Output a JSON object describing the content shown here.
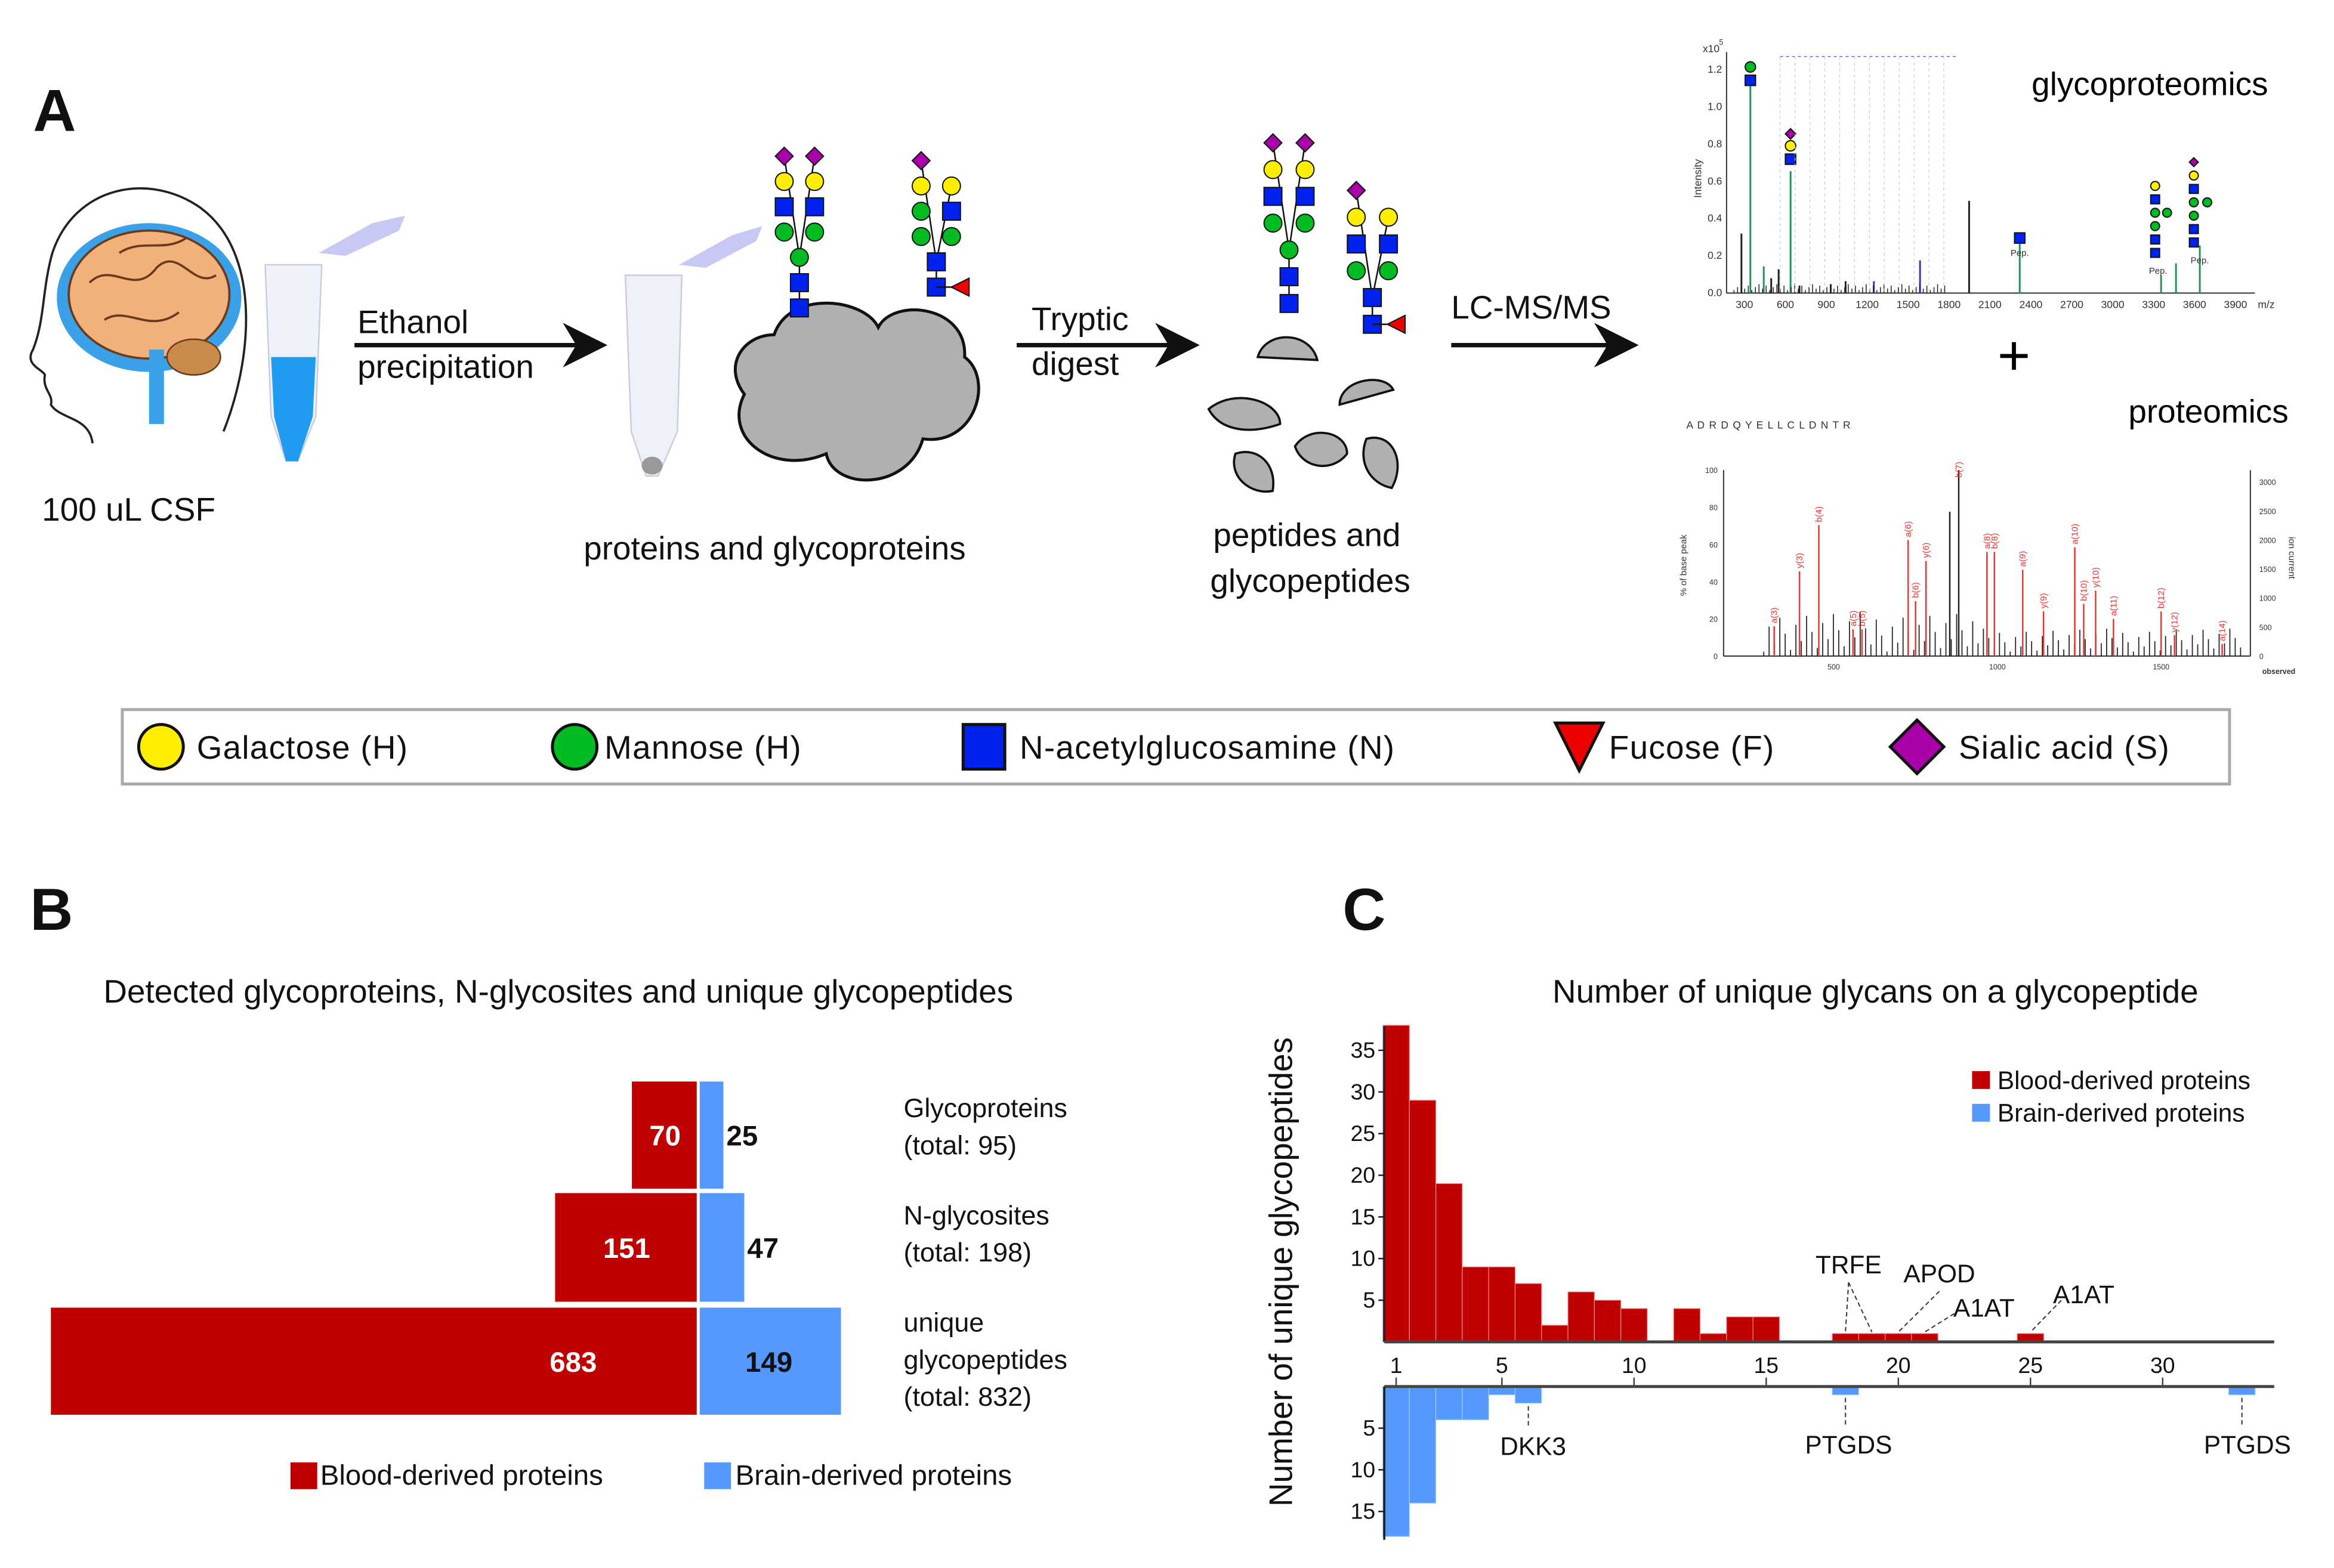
{
  "panel_a": {
    "letter": "A",
    "csf_label": "100 uL CSF",
    "step1": [
      "Ethanol",
      "precipitation"
    ],
    "proteins_label": "proteins and glycoproteins",
    "step2": [
      "Tryptic",
      "digest"
    ],
    "peptides_label": [
      "peptides and",
      "glycopeptides"
    ],
    "step3": "LC-MS/MS",
    "glyco_title": "glycoproteomics",
    "plus": "+",
    "prot_title": "proteomics",
    "glyco_spectrum": {
      "y_label": "Intensity",
      "y_exponent": "x10",
      "y_exp_power": "5",
      "y_ticks": [
        "0.0",
        "0.2",
        "0.4",
        "0.6",
        "0.8",
        "1.0",
        "1.2"
      ],
      "x_ticks": [
        "300",
        "600",
        "900",
        "1200",
        "1500",
        "1800",
        "2100",
        "2400",
        "2700",
        "3000",
        "3300",
        "3600",
        "3900"
      ],
      "x_label": "m/z",
      "pep_label": "Pep."
    },
    "prot_spectrum": {
      "sequence": "A D R D Q Y E L L C L D N T R",
      "y_label": "% of base peak",
      "y2_label": "ion current",
      "x_label": "observed",
      "y_ticks": [
        "0",
        "20",
        "40",
        "60",
        "80",
        "100"
      ],
      "y2_ticks": [
        "0",
        "500",
        "1000",
        "1500",
        "2000",
        "2500",
        "3000"
      ],
      "x_ticks": [
        "500",
        "1000",
        "1500"
      ],
      "peak_labels": [
        "a(3)",
        "y(3)",
        "b(4)",
        "a(5)",
        "b(5)",
        "a(6)",
        "b(6)",
        "y(6)",
        "b(7)",
        "a(8)",
        "b(8)",
        "a(9)",
        "y(9)",
        "a(10)",
        "b(10)",
        "y(10)",
        "a(11)",
        "b(12)",
        "y(12)",
        "a(14)"
      ]
    },
    "legend": [
      {
        "label": "Galactose (H)",
        "shape": "circle",
        "color": "#ffee00"
      },
      {
        "label": "Mannose (H)",
        "shape": "circle",
        "color": "#00bb22"
      },
      {
        "label": "N-acetylglucosamine (N)",
        "shape": "square",
        "color": "#0022ee"
      },
      {
        "label": "Fucose (F)",
        "shape": "triangle",
        "color": "#ee0000"
      },
      {
        "label": "Sialic acid (S)",
        "shape": "diamond",
        "color": "#aa00aa"
      }
    ]
  },
  "panel_b": {
    "letter": "B",
    "chart_data": {
      "type": "bar",
      "title": "Detected glycoproteins, N-glycosites and unique glycopeptides",
      "orientation": "horizontal-diverging",
      "categories": [
        [
          "Glycoproteins",
          "(total: 95)"
        ],
        [
          "N-glycosites",
          "(total: 198)"
        ],
        [
          "unique",
          "glycopeptides",
          "(total: 832)"
        ]
      ],
      "series": [
        {
          "name": "Blood-derived proteins",
          "color": "#c00000",
          "values": [
            70,
            151,
            683
          ]
        },
        {
          "name": "Brain-derived proteins",
          "color": "#5599ff",
          "values": [
            25,
            47,
            149
          ]
        }
      ],
      "legend": "bottom"
    }
  },
  "panel_c": {
    "letter": "C",
    "chart_data": {
      "type": "bar",
      "title": "Number of unique glycans on a glycopeptide",
      "ylabel": "Number of unique glycopeptides",
      "xlabel": "",
      "x_ticks": [
        1,
        5,
        10,
        15,
        20,
        25,
        30
      ],
      "y_ticks_top": [
        5,
        10,
        15,
        20,
        25,
        30,
        35
      ],
      "y_ticks_bottom": [
        5,
        10,
        15
      ],
      "xlim": [
        0.5,
        33.5
      ],
      "series": [
        {
          "name": "Blood-derived proteins",
          "color": "#c00000",
          "direction": "up",
          "x": [
            1,
            2,
            3,
            4,
            5,
            6,
            7,
            8,
            9,
            10,
            12,
            13,
            14,
            15,
            18,
            19,
            20,
            21,
            25
          ],
          "values": [
            38,
            29,
            19,
            9,
            9,
            7,
            2,
            6,
            5,
            4,
            4,
            1,
            3,
            3,
            1,
            1,
            1,
            1,
            1
          ]
        },
        {
          "name": "Brain-derived proteins",
          "color": "#5599ff",
          "direction": "down",
          "x": [
            1,
            2,
            3,
            4,
            5,
            6,
            18,
            33
          ],
          "values": [
            18,
            14,
            4,
            4,
            1,
            2,
            1,
            1
          ]
        }
      ],
      "annotations": [
        {
          "text": "TRFE",
          "x": [
            18,
            19
          ],
          "series": "Blood-derived proteins"
        },
        {
          "text": "APOD",
          "x": [
            20
          ],
          "series": "Blood-derived proteins"
        },
        {
          "text": "A1AT",
          "x": [
            21
          ],
          "series": "Blood-derived proteins"
        },
        {
          "text": "A1AT",
          "x": [
            25
          ],
          "series": "Blood-derived proteins"
        },
        {
          "text": "DKK3",
          "x": [
            6
          ],
          "series": "Brain-derived proteins"
        },
        {
          "text": "PTGDS",
          "x": [
            18
          ],
          "series": "Brain-derived proteins"
        },
        {
          "text": "PTGDS",
          "x": [
            33
          ],
          "series": "Brain-derived proteins"
        }
      ],
      "legend": "top-right"
    }
  }
}
